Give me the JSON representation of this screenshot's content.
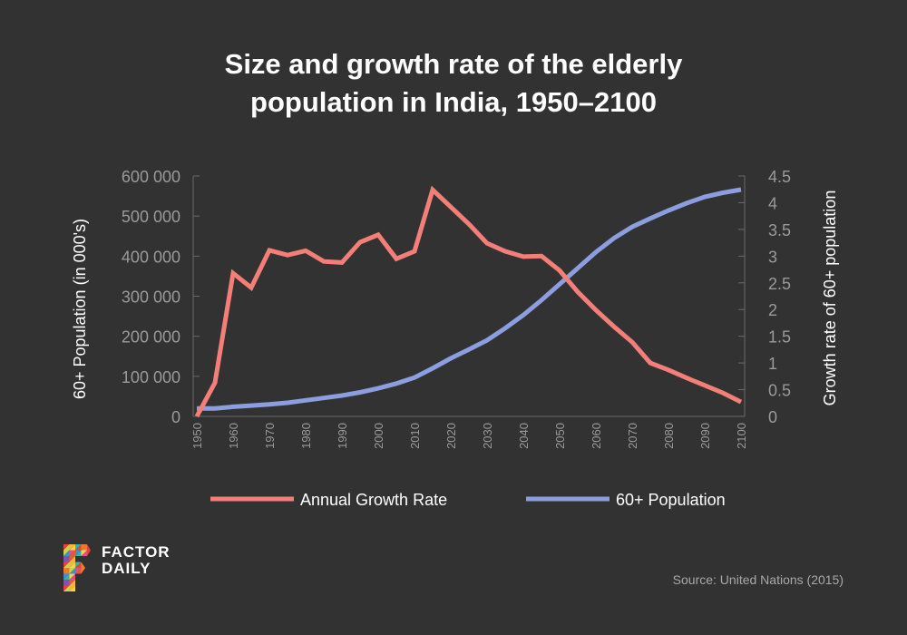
{
  "header": {
    "title_line1": "Size and growth rate of the elderly",
    "title_line2": "population in India, 1950–2100"
  },
  "footer": {
    "source": "Source: United Nations (2015)",
    "logo_line1": "FACTOR",
    "logo_line2": "DAILY",
    "logo_icon": "factor-daily-mosaic-f-logo"
  },
  "colors": {
    "background": "#323232",
    "growth_rate": "#f47f79",
    "population": "#8c9ee0",
    "axis": "#6a6a6a",
    "tick_text": "#9a9a9a"
  },
  "chart_data": {
    "type": "line",
    "title": "Size and growth rate of the elderly population in India, 1950–2100",
    "xlabel": "",
    "ylabel_left": "60+ Population (in 000's)",
    "ylabel_right": "Growth rate of 60+ population",
    "ylim_left": [
      0,
      600000
    ],
    "ylim_right": [
      0,
      4.5
    ],
    "xlim": [
      1950,
      2100
    ],
    "grid": false,
    "legend_position": "bottom",
    "left_ticks": [
      "0",
      "100 000",
      "200 000",
      "300 000",
      "400 000",
      "500 000",
      "600 000"
    ],
    "left_tick_values": [
      0,
      100000,
      200000,
      300000,
      400000,
      500000,
      600000
    ],
    "right_ticks": [
      "0",
      "0.5",
      "1",
      "1.5",
      "2",
      "2.5",
      "3",
      "3.5",
      "4",
      "4.5"
    ],
    "right_tick_values": [
      0,
      0.5,
      1,
      1.5,
      2,
      2.5,
      3,
      3.5,
      4,
      4.5
    ],
    "x_ticks": [
      "1950",
      "1960",
      "1970",
      "1980",
      "1990",
      "2000",
      "2010",
      "2020",
      "2030",
      "2040",
      "2050",
      "2060",
      "2070",
      "2080",
      "2090",
      "2100"
    ],
    "x_tick_values": [
      1950,
      1960,
      1970,
      1980,
      1990,
      2000,
      2010,
      2020,
      2030,
      2040,
      2050,
      2060,
      2070,
      2080,
      2090,
      2100
    ],
    "x": [
      1950,
      1955,
      1960,
      1965,
      1970,
      1975,
      1980,
      1985,
      1990,
      1995,
      2000,
      2005,
      2010,
      2015,
      2020,
      2025,
      2030,
      2035,
      2040,
      2045,
      2050,
      2055,
      2060,
      2065,
      2070,
      2075,
      2080,
      2085,
      2090,
      2095,
      2100
    ],
    "series": [
      {
        "name": "Annual Growth Rate",
        "axis": "right",
        "color": "#f47f79",
        "values": [
          0,
          0.63,
          2.68,
          2.41,
          3.11,
          3.02,
          3.1,
          2.9,
          2.88,
          3.26,
          3.4,
          2.95,
          3.09,
          4.24,
          3.92,
          3.6,
          3.24,
          3.09,
          2.99,
          3.0,
          2.73,
          2.33,
          1.99,
          1.68,
          1.39,
          1.0,
          0.87,
          0.72,
          0.58,
          0.44,
          0.27
        ]
      },
      {
        "name": "60+ Population",
        "axis": "left",
        "color": "#8c9ee0",
        "values": [
          20000,
          20000,
          24000,
          27000,
          30000,
          34000,
          40000,
          46000,
          52000,
          60000,
          70000,
          82000,
          97000,
          120000,
          145000,
          167000,
          190000,
          220000,
          253000,
          290000,
          330000,
          370000,
          410000,
          445000,
          473000,
          494000,
          514000,
          532000,
          548000,
          558000,
          566000
        ]
      }
    ]
  }
}
